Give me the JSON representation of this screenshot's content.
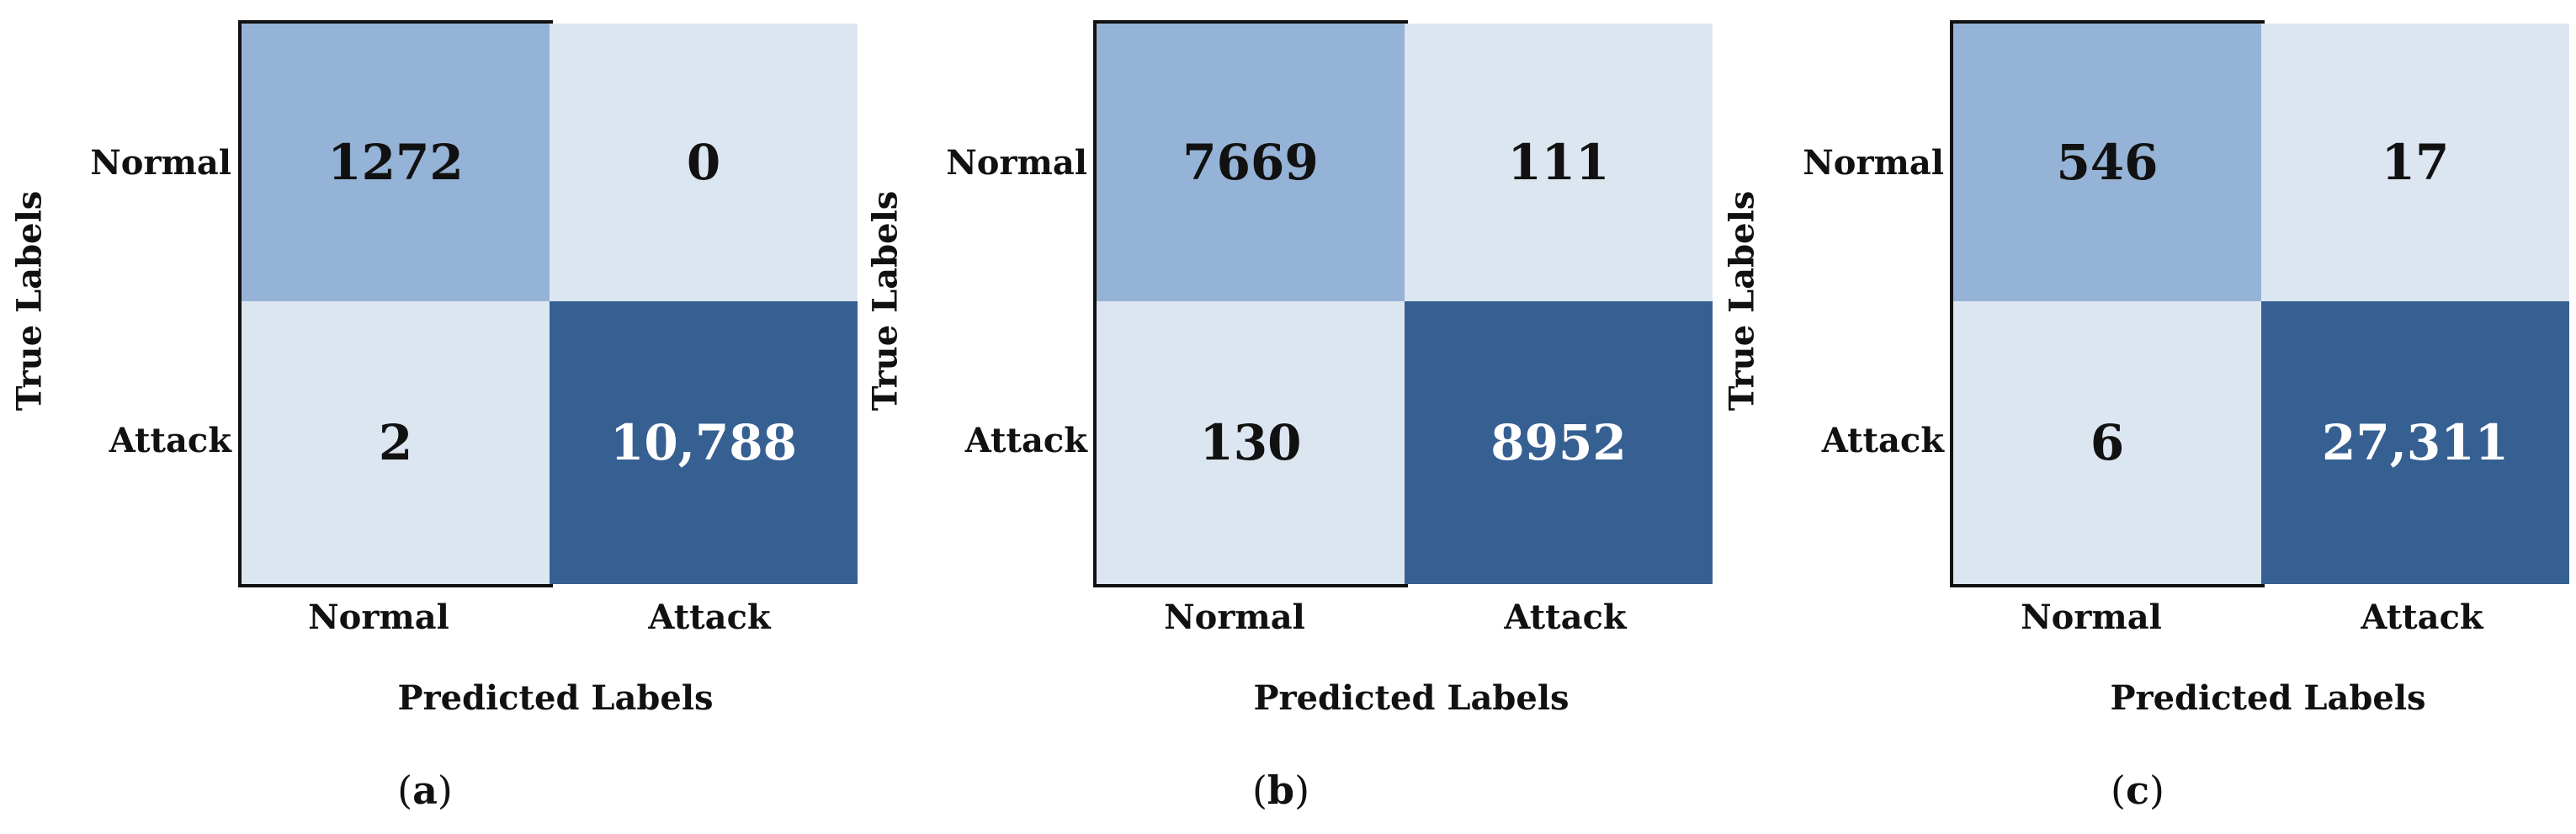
{
  "chart_data": [
    {
      "type": "heatmap",
      "caption_letter": "a",
      "xlabel": "Predicted Labels",
      "ylabel": "True Labels",
      "rows": [
        "Normal",
        "Attack"
      ],
      "cols": [
        "Normal",
        "Attack"
      ],
      "values": [
        [
          1272,
          0
        ],
        [
          2,
          10788
        ]
      ],
      "value_labels": [
        [
          "1272",
          "0"
        ],
        [
          "2",
          "10,788"
        ]
      ]
    },
    {
      "type": "heatmap",
      "caption_letter": "b",
      "xlabel": "Predicted Labels",
      "ylabel": "True Labels",
      "rows": [
        "Normal",
        "Attack"
      ],
      "cols": [
        "Normal",
        "Attack"
      ],
      "values": [
        [
          7669,
          111
        ],
        [
          130,
          8952
        ]
      ],
      "value_labels": [
        [
          "7669",
          "111"
        ],
        [
          "130",
          "8952"
        ]
      ]
    },
    {
      "type": "heatmap",
      "caption_letter": "c",
      "xlabel": "Predicted Labels",
      "ylabel": "True Labels",
      "rows": [
        "Normal",
        "Attack"
      ],
      "cols": [
        "Normal",
        "Attack"
      ],
      "values": [
        [
          546,
          17
        ],
        [
          6,
          27311
        ]
      ],
      "value_labels": [
        [
          "546",
          "17"
        ],
        [
          "6",
          "27,311"
        ]
      ]
    }
  ],
  "colors": {
    "light": "#dce6f1",
    "medium": "#95b3d7",
    "dark": "#366092",
    "border": "#111111"
  }
}
